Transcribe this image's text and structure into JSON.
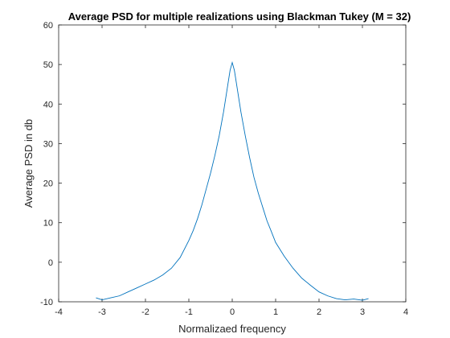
{
  "chart_data": {
    "type": "line",
    "title": "Average PSD for multiple realizations using Blackman Tukey (M = 32)",
    "xlabel": "Normalizaed frequency",
    "ylabel": "Average PSD in db",
    "xlim": [
      -4,
      4
    ],
    "ylim": [
      -10,
      60
    ],
    "xticks": [
      -4,
      -3,
      -2,
      -1,
      0,
      1,
      2,
      3,
      4
    ],
    "yticks": [
      -10,
      0,
      10,
      20,
      30,
      40,
      50,
      60
    ],
    "xtick_labels": [
      "-4",
      "-3",
      "-2",
      "-1",
      "0",
      "1",
      "2",
      "3",
      "4"
    ],
    "ytick_labels": [
      "-10",
      "0",
      "10",
      "20",
      "30",
      "40",
      "50",
      "60"
    ],
    "grid": false,
    "line_color": "#0072BD",
    "series": [
      {
        "x": [
          -3.14,
          -3.0,
          -2.8,
          -2.6,
          -2.4,
          -2.2,
          -2.0,
          -1.8,
          -1.6,
          -1.4,
          -1.2,
          -1.0,
          -0.9,
          -0.8,
          -0.7,
          -0.6,
          -0.5,
          -0.4,
          -0.3,
          -0.2,
          -0.15,
          -0.1,
          -0.05,
          0.0,
          0.05,
          0.1,
          0.15,
          0.2,
          0.3,
          0.4,
          0.5,
          0.6,
          0.7,
          0.8,
          0.9,
          1.0,
          1.2,
          1.4,
          1.6,
          1.8,
          2.0,
          2.2,
          2.4,
          2.6,
          2.8,
          3.0,
          3.14
        ],
        "y": [
          -9,
          -9.5,
          -9,
          -8.5,
          -7.5,
          -6.5,
          -5.5,
          -4.5,
          -3.2,
          -1.5,
          1.2,
          5.5,
          8.0,
          11.0,
          14.5,
          18.5,
          22.5,
          27.0,
          32.0,
          38.0,
          41.5,
          45.0,
          48.5,
          50.5,
          48.5,
          45.0,
          41.5,
          38.0,
          32.0,
          26.5,
          21.5,
          17.5,
          14.0,
          10.5,
          7.8,
          5.0,
          1.5,
          -1.5,
          -4.0,
          -5.8,
          -7.5,
          -8.5,
          -9.2,
          -9.5,
          -9.3,
          -9.6,
          -9.2
        ]
      }
    ]
  }
}
